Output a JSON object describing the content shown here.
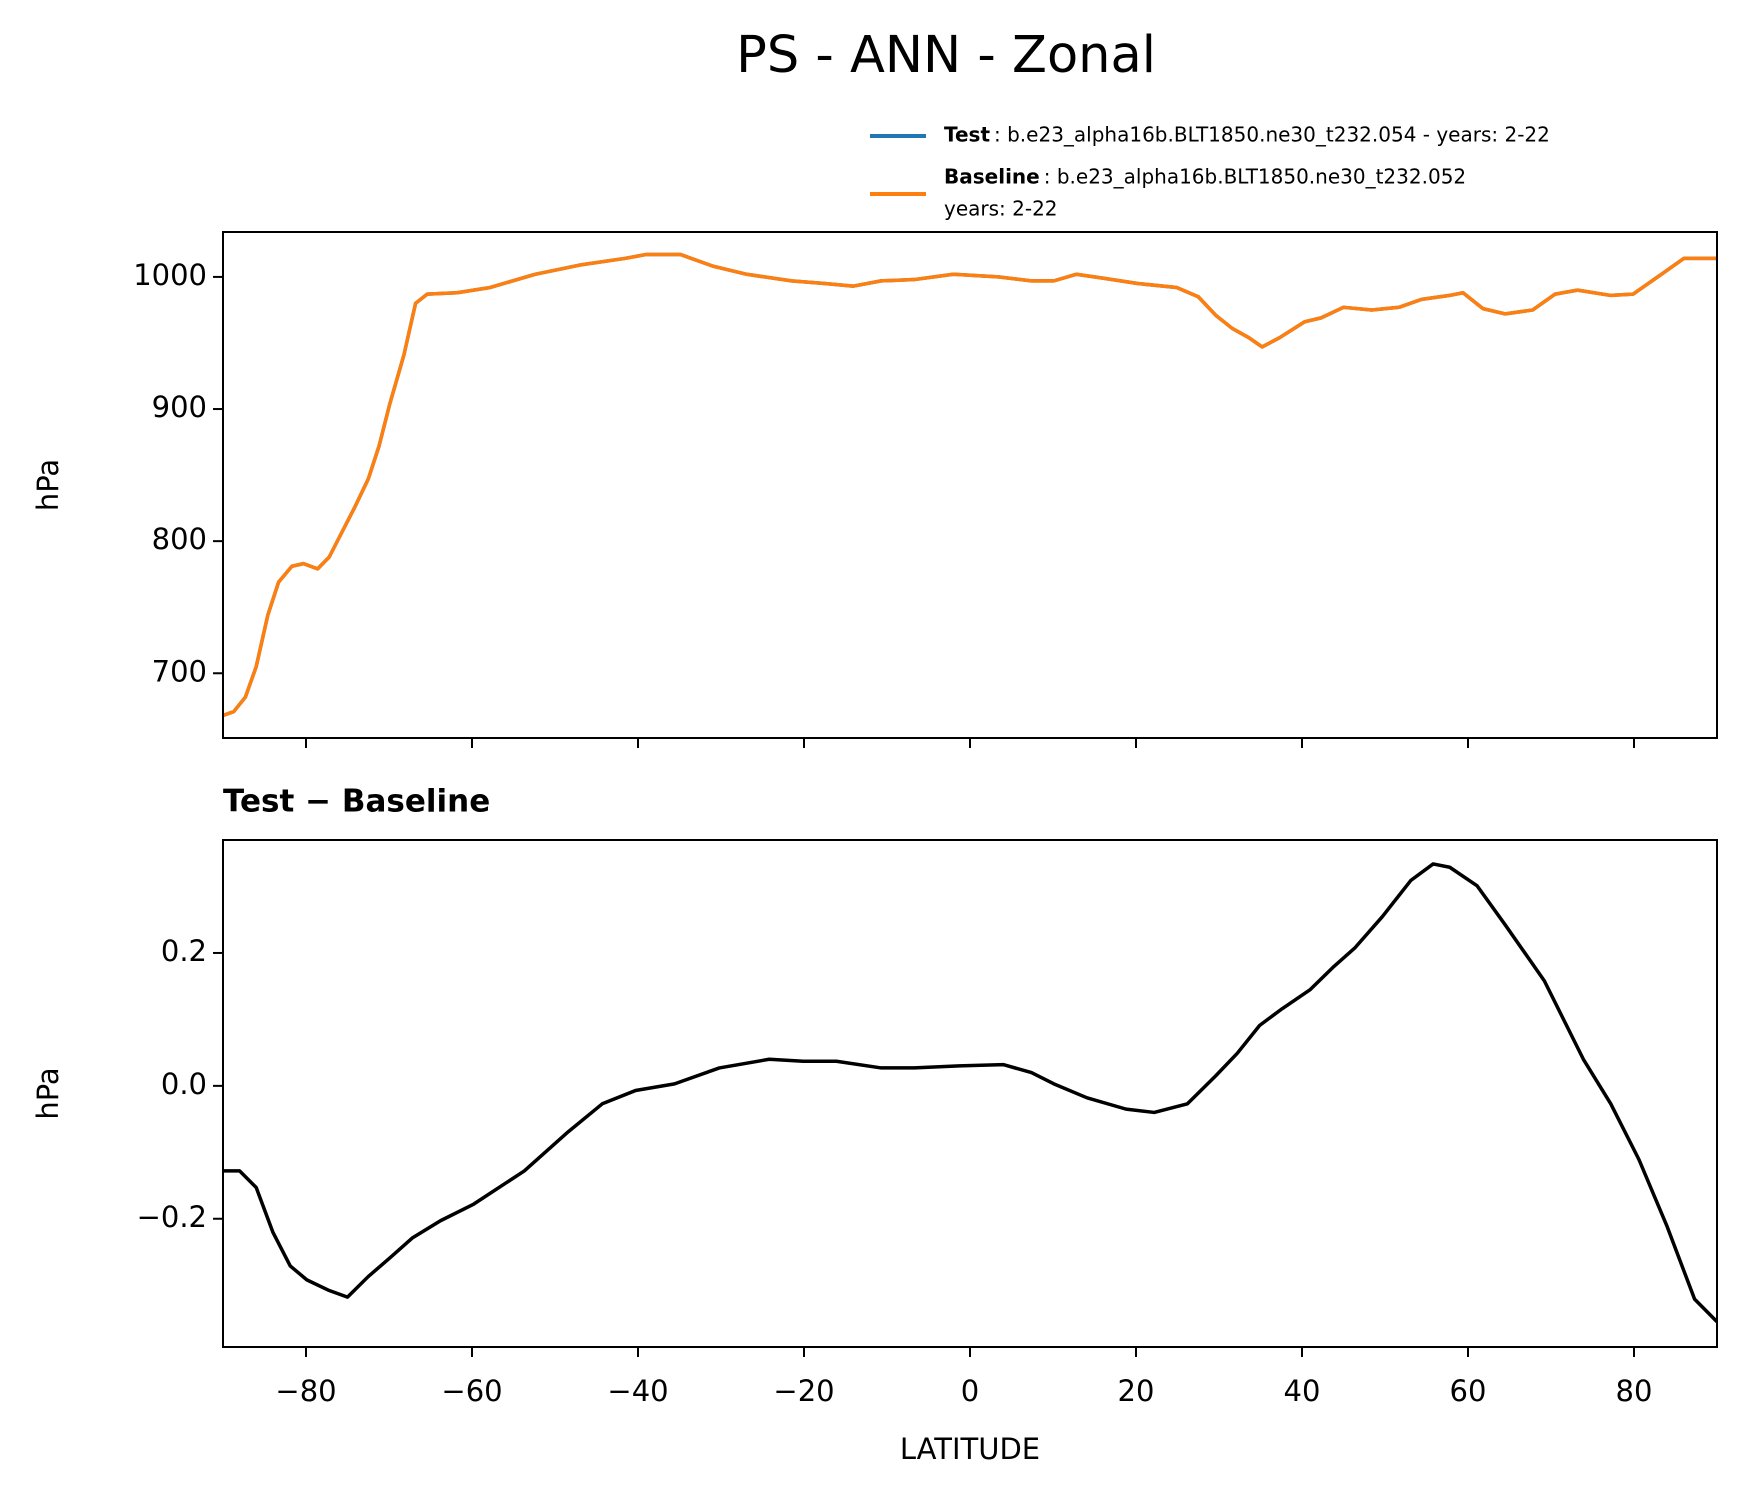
{
  "chart_data": [
    {
      "type": "line",
      "title": "PS - ANN - Zonal",
      "ylabel": "hPa",
      "x": [
        -90,
        -88.7,
        -87.3,
        -86,
        -84.6,
        -83.3,
        -81.7,
        -80.3,
        -78.6,
        -77.2,
        -75.9,
        -74.1,
        -72.5,
        -71.2,
        -69.9,
        -68.2,
        -66.8,
        -65.4,
        -61.8,
        -57.8,
        -52.4,
        -47,
        -41.6,
        -39,
        -34.9,
        -30.9,
        -26.9,
        -21.5,
        -17.5,
        -14.1,
        -10.7,
        -6.7,
        -2,
        3.4,
        7.4,
        10.1,
        12.8,
        16.1,
        20.2,
        24.9,
        27.5,
        29.6,
        31.6,
        33.6,
        35.2,
        37.3,
        40.3,
        42.3,
        45,
        48.4,
        51.7,
        54.4,
        57.8,
        59.4,
        61.8,
        64.5,
        67.8,
        70.5,
        73.2,
        77.2,
        79.9,
        83.3,
        86,
        90
      ],
      "series": [
        {
          "name": "Test",
          "label_lines": [
            ": b.e23_alpha16b.BLT1850.ne30_t232.054 - years: 2-22"
          ],
          "color": "#1f77b4",
          "values": [
            668,
            671,
            682,
            705,
            744,
            769,
            781,
            783,
            779,
            788,
            804,
            826,
            847,
            872,
            904,
            941,
            980,
            987,
            988,
            992,
            1002,
            1009,
            1014,
            1017,
            1017,
            1008,
            1002,
            997,
            995,
            993,
            997,
            998,
            1002,
            1000,
            997,
            997,
            1002,
            999,
            995,
            992,
            985,
            971,
            961,
            954,
            947,
            954,
            966,
            969,
            977,
            975,
            977,
            983,
            986,
            988,
            976,
            972,
            975,
            987,
            990,
            986,
            987,
            1002,
            1014,
            1014
          ]
        },
        {
          "name": "Baseline",
          "label_lines": [
            ": b.e23_alpha16b.BLT1850.ne30_t232.052",
            "years: 2-22"
          ],
          "color": "#ff7f0e",
          "values": [
            668,
            671,
            682,
            705,
            744,
            769,
            781,
            783,
            779,
            788,
            804,
            826,
            847,
            872,
            904,
            941,
            980,
            987,
            988,
            992,
            1002,
            1009,
            1014,
            1017,
            1017,
            1008,
            1002,
            997,
            995,
            993,
            997,
            998,
            1002,
            1000,
            997,
            997,
            1002,
            999,
            995,
            992,
            985,
            971,
            961,
            954,
            947,
            954,
            966,
            969,
            977,
            975,
            977,
            983,
            986,
            988,
            976,
            972,
            975,
            987,
            990,
            986,
            987,
            1002,
            1014,
            1014
          ]
        }
      ],
      "xlim": [
        -90,
        90
      ],
      "xticks": [
        -80,
        -60,
        -40,
        -20,
        0,
        20,
        40,
        60,
        80
      ],
      "ylim": [
        651,
        1034
      ],
      "yticks": [
        700,
        800,
        900,
        1000
      ]
    },
    {
      "type": "line",
      "title": "Test − Baseline",
      "xlabel": "LATITUDE",
      "ylabel": "hPa",
      "color": "#000000",
      "x": [
        -90,
        -88,
        -86,
        -84,
        -81.9,
        -79.9,
        -77.2,
        -75,
        -72.5,
        -69.9,
        -67.2,
        -63.8,
        -59.8,
        -53.7,
        -48.4,
        -44.3,
        -40.3,
        -35.6,
        -30.2,
        -24.2,
        -20.1,
        -16.1,
        -10.7,
        -6.7,
        -1.3,
        4,
        7.4,
        10.1,
        14.1,
        18.8,
        22.2,
        26.2,
        29.6,
        32.2,
        34.9,
        37.6,
        41,
        43.7,
        46.4,
        49.7,
        53.1,
        55.8,
        57.8,
        61.1,
        64.5,
        69.2,
        73.9,
        77.2,
        80.6,
        84,
        87.3,
        90
      ],
      "values": [
        -0.128,
        -0.128,
        -0.153,
        -0.22,
        -0.271,
        -0.292,
        -0.308,
        -0.318,
        -0.287,
        -0.259,
        -0.229,
        -0.203,
        -0.178,
        -0.128,
        -0.069,
        -0.027,
        -0.007,
        0.003,
        0.027,
        0.04,
        0.037,
        0.037,
        0.027,
        0.027,
        0.03,
        0.032,
        0.02,
        0.003,
        -0.018,
        -0.035,
        -0.04,
        -0.027,
        0.015,
        0.049,
        0.091,
        0.116,
        0.145,
        0.178,
        0.208,
        0.255,
        0.309,
        0.334,
        0.329,
        0.301,
        0.242,
        0.158,
        0.04,
        -0.027,
        -0.111,
        -0.212,
        -0.321,
        -0.355
      ],
      "xlim": [
        -90,
        90
      ],
      "xticks": [
        {
          "value": -80,
          "label": "−80"
        },
        {
          "value": -60,
          "label": "−60"
        },
        {
          "value": -40,
          "label": "−40"
        },
        {
          "value": -20,
          "label": "−20"
        },
        0,
        20,
        40,
        60,
        80
      ],
      "ylim": [
        -0.393,
        0.37
      ],
      "yticks": [
        {
          "value": -0.2,
          "label": "−0.2"
        },
        {
          "value": 0,
          "label": "0.0"
        },
        0.2
      ]
    }
  ]
}
